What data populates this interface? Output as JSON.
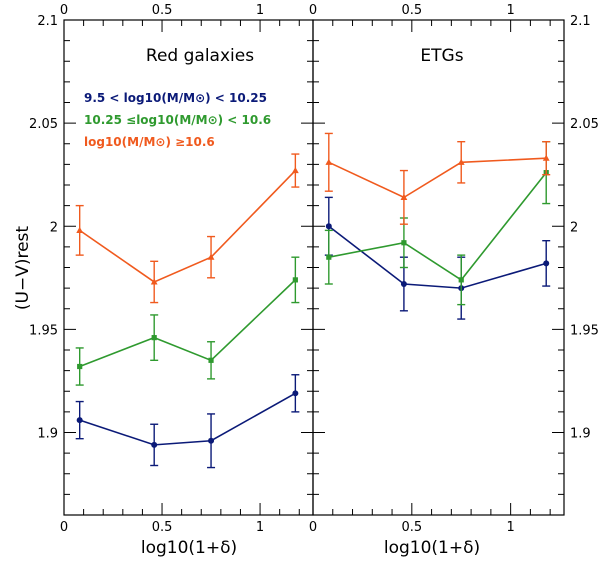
{
  "chart_data": [
    {
      "type": "line",
      "title": "Red galaxies",
      "xlabel": "log10(1+δ)",
      "ylabel": "(U−V)rest",
      "xlim": [
        0,
        1.27
      ],
      "ylim": [
        1.86,
        2.1
      ],
      "x_ticks": [
        "0",
        "0.5",
        "1"
      ],
      "y_ticks": [
        "1.9",
        "1.95",
        "2",
        "2.05",
        "2.1"
      ],
      "legend": [
        {
          "text": "9.5 < log10(M/M⊙) < 10.25",
          "color": "#0b1a78"
        },
        {
          "text": "10.25 ≤log10(M/M⊙) < 10.6",
          "color": "#2f9a2f"
        },
        {
          "text": "log10(M/M⊙) ≥10.6",
          "color": "#f05a1e"
        }
      ],
      "series": [
        {
          "name": "9.5 < log10(M/M⊙) < 10.25",
          "color": "#0b1a78",
          "marker": "circle",
          "x": [
            0.08,
            0.46,
            0.75,
            1.18
          ],
          "y": [
            1.906,
            1.894,
            1.896,
            1.919
          ],
          "err": [
            0.009,
            0.01,
            0.013,
            0.009
          ]
        },
        {
          "name": "10.25 ≤log10(M/M⊙) < 10.6",
          "color": "#2f9a2f",
          "marker": "square",
          "x": [
            0.08,
            0.46,
            0.75,
            1.18
          ],
          "y": [
            1.932,
            1.946,
            1.935,
            1.974
          ],
          "err": [
            0.009,
            0.011,
            0.009,
            0.011
          ]
        },
        {
          "name": "log10(M/M⊙) ≥10.6",
          "color": "#f05a1e",
          "marker": "triangle",
          "x": [
            0.08,
            0.46,
            0.75,
            1.18
          ],
          "y": [
            1.998,
            1.973,
            1.985,
            2.027
          ],
          "err": [
            0.012,
            0.01,
            0.01,
            0.008
          ]
        }
      ]
    },
    {
      "type": "line",
      "title": "ETGs",
      "xlabel": "log10(1+δ)",
      "ylabel": "(U−V)rest",
      "xlim": [
        0,
        1.27
      ],
      "ylim": [
        1.86,
        2.1
      ],
      "x_ticks": [
        "0",
        "0.5",
        "1"
      ],
      "y_ticks": [
        "1.9",
        "1.95",
        "2",
        "2.05",
        "2.1"
      ],
      "series": [
        {
          "name": "9.5 < log10(M/M⊙) < 10.25",
          "color": "#0b1a78",
          "marker": "circle",
          "x": [
            0.08,
            0.46,
            0.75,
            1.18
          ],
          "y": [
            2.0,
            1.972,
            1.97,
            1.982
          ],
          "err": [
            0.014,
            0.013,
            0.015,
            0.011
          ]
        },
        {
          "name": "10.25 ≤log10(M/M⊙) < 10.6",
          "color": "#2f9a2f",
          "marker": "square",
          "x": [
            0.08,
            0.46,
            0.75,
            1.18
          ],
          "y": [
            1.985,
            1.992,
            1.974,
            2.026
          ],
          "err": [
            0.013,
            0.012,
            0.012,
            0.015
          ]
        },
        {
          "name": "log10(M/M⊙) ≥10.6",
          "color": "#f05a1e",
          "marker": "triangle",
          "x": [
            0.08,
            0.46,
            0.75,
            1.18
          ],
          "y": [
            2.031,
            2.014,
            2.031,
            2.033
          ],
          "err": [
            0.014,
            0.013,
            0.01,
            0.008
          ]
        }
      ]
    }
  ]
}
